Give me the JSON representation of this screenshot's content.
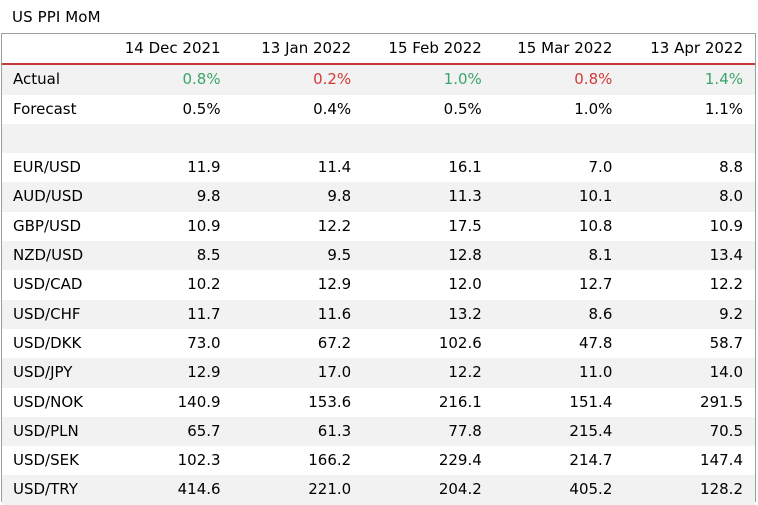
{
  "title": "US PPI MoM",
  "colors": {
    "positive": "#3aa66a",
    "negative": "#d13a3a",
    "header_rule": "#c63a3a",
    "band": "#f2f2f2"
  },
  "columns": [
    "14 Dec 2021",
    "13 Jan 2022",
    "15 Feb 2022",
    "15 Mar 2022",
    "13 Apr 2022"
  ],
  "actual": {
    "label": "Actual",
    "values": [
      "0.8%",
      "0.2%",
      "1.0%",
      "0.8%",
      "1.4%"
    ],
    "tone": [
      "up",
      "down",
      "up",
      "down",
      "up"
    ]
  },
  "forecast": {
    "label": "Forecast",
    "values": [
      "0.5%",
      "0.4%",
      "0.5%",
      "1.0%",
      "1.1%"
    ]
  },
  "pairs": [
    {
      "label": "EUR/USD",
      "values": [
        "11.9",
        "11.4",
        "16.1",
        "7.0",
        "8.8"
      ]
    },
    {
      "label": "AUD/USD",
      "values": [
        "9.8",
        "9.8",
        "11.3",
        "10.1",
        "8.0"
      ]
    },
    {
      "label": "GBP/USD",
      "values": [
        "10.9",
        "12.2",
        "17.5",
        "10.8",
        "10.9"
      ]
    },
    {
      "label": "NZD/USD",
      "values": [
        "8.5",
        "9.5",
        "12.8",
        "8.1",
        "13.4"
      ]
    },
    {
      "label": "USD/CAD",
      "values": [
        "10.2",
        "12.9",
        "12.0",
        "12.7",
        "12.2"
      ]
    },
    {
      "label": "USD/CHF",
      "values": [
        "11.7",
        "11.6",
        "13.2",
        "8.6",
        "9.2"
      ]
    },
    {
      "label": "USD/DKK",
      "values": [
        "73.0",
        "67.2",
        "102.6",
        "47.8",
        "58.7"
      ]
    },
    {
      "label": "USD/JPY",
      "values": [
        "12.9",
        "17.0",
        "12.2",
        "11.0",
        "14.0"
      ]
    },
    {
      "label": "USD/NOK",
      "values": [
        "140.9",
        "153.6",
        "216.1",
        "151.4",
        "291.5"
      ]
    },
    {
      "label": "USD/PLN",
      "values": [
        "65.7",
        "61.3",
        "77.8",
        "215.4",
        "70.5"
      ]
    },
    {
      "label": "USD/SEK",
      "values": [
        "102.3",
        "166.2",
        "229.4",
        "214.7",
        "147.4"
      ]
    },
    {
      "label": "USD/TRY",
      "values": [
        "414.6",
        "221.0",
        "204.2",
        "405.2",
        "128.2"
      ]
    }
  ]
}
